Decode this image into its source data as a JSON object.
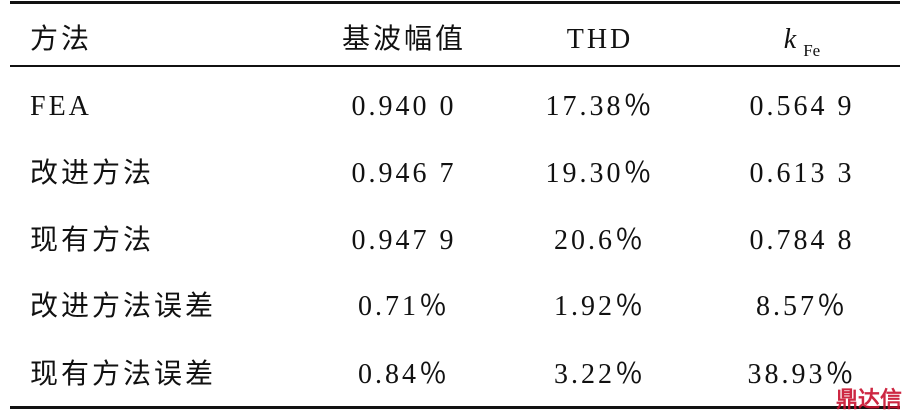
{
  "table": {
    "header": [
      "方法",
      "基波幅值",
      "THD",
      {
        "symbol": "k",
        "subscript": "Fe"
      }
    ],
    "rows": [
      [
        "FEA",
        "0.940 0",
        "17.38％",
        "0.564 9"
      ],
      [
        "改进方法",
        "0.946 7",
        "19.30％",
        "0.613 3"
      ],
      [
        "现有方法",
        "0.947 9",
        "20.6％",
        "0.784 8"
      ],
      [
        "改进方法误差",
        "0.71％",
        "1.92％",
        "8.57％"
      ],
      [
        "现有方法误差",
        "0.84％",
        "3.22％",
        "38.93％"
      ]
    ]
  },
  "watermark": "鼎达信"
}
